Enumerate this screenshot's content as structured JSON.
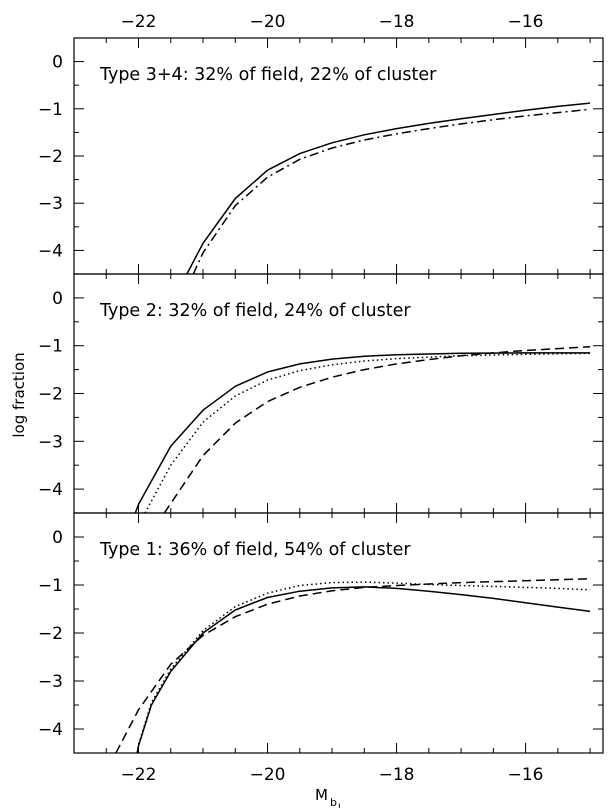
{
  "chart_data": {
    "type": "line",
    "x_axis": {
      "label_main": "M",
      "label_sub": "b",
      "label_sub2": "J",
      "range": [
        -23.0,
        -14.8
      ],
      "ticks": [
        -22,
        -20,
        -18,
        -16
      ],
      "tick_labels": [
        "−22",
        "−20",
        "−18",
        "−16"
      ],
      "minor_step": 0.5
    },
    "y_axis": {
      "label": "log fraction",
      "range": [
        -4.5,
        0.5
      ],
      "ticks": [
        0,
        -1,
        -2,
        -3,
        -4
      ],
      "tick_labels": [
        "0",
        "−1",
        "−2",
        "−3",
        "−4"
      ],
      "minor_step": 0.5
    },
    "panels": [
      {
        "annotation": "Type 3+4: 32% of field, 22% of cluster",
        "series": [
          {
            "style": "solid",
            "x": [
              -21.25,
              -21,
              -20.5,
              -20,
              -19.5,
              -19,
              -18.5,
              -18,
              -17.5,
              -17,
              -16.5,
              -16,
              -15.5,
              -15
            ],
            "y": [
              -4.5,
              -3.85,
              -2.9,
              -2.3,
              -1.95,
              -1.72,
              -1.55,
              -1.42,
              -1.31,
              -1.21,
              -1.12,
              -1.03,
              -0.95,
              -0.88
            ]
          },
          {
            "style": "dashdot",
            "x": [
              -21.15,
              -21,
              -20.5,
              -20,
              -19.5,
              -19,
              -18.5,
              -18,
              -17.5,
              -17,
              -16.5,
              -16,
              -15.5,
              -15
            ],
            "y": [
              -4.5,
              -4.05,
              -3.05,
              -2.45,
              -2.07,
              -1.83,
              -1.66,
              -1.53,
              -1.42,
              -1.32,
              -1.23,
              -1.15,
              -1.08,
              -1.01
            ]
          }
        ]
      },
      {
        "annotation": "Type 2: 32% of field, 24% of cluster",
        "series": [
          {
            "style": "solid",
            "x": [
              -22.05,
              -22,
              -21.5,
              -21,
              -20.5,
              -20,
              -19.5,
              -19,
              -18.5,
              -18,
              -17,
              -16,
              -15
            ],
            "y": [
              -4.5,
              -4.32,
              -3.1,
              -2.35,
              -1.85,
              -1.55,
              -1.38,
              -1.28,
              -1.22,
              -1.19,
              -1.16,
              -1.15,
              -1.15
            ]
          },
          {
            "style": "dotted",
            "x": [
              -21.9,
              -21.5,
              -21,
              -20.5,
              -20,
              -19.5,
              -19,
              -18.5,
              -18,
              -17,
              -16,
              -15
            ],
            "y": [
              -4.5,
              -3.5,
              -2.6,
              -2.05,
              -1.72,
              -1.52,
              -1.4,
              -1.32,
              -1.27,
              -1.21,
              -1.18,
              -1.16
            ]
          },
          {
            "style": "dashed",
            "x": [
              -21.6,
              -21.5,
              -21,
              -20.5,
              -20,
              -19.5,
              -19,
              -18.5,
              -18,
              -17.5,
              -17,
              -16.5,
              -16,
              -15.5,
              -15
            ],
            "y": [
              -4.5,
              -4.3,
              -3.3,
              -2.62,
              -2.17,
              -1.87,
              -1.66,
              -1.5,
              -1.38,
              -1.29,
              -1.21,
              -1.15,
              -1.1,
              -1.06,
              -1.02
            ]
          }
        ]
      },
      {
        "annotation": "Type 1: 36% of field, 54% of cluster",
        "series": [
          {
            "style": "solid",
            "x": [
              -22.02,
              -22,
              -21.8,
              -21.5,
              -21,
              -20.5,
              -20,
              -19.5,
              -19,
              -18.5,
              -18,
              -17.5,
              -17,
              -16.5,
              -16,
              -15.5,
              -15
            ],
            "y": [
              -4.5,
              -4.35,
              -3.5,
              -2.8,
              -2.0,
              -1.52,
              -1.26,
              -1.13,
              -1.06,
              -1.04,
              -1.07,
              -1.13,
              -1.2,
              -1.28,
              -1.37,
              -1.46,
              -1.55
            ]
          },
          {
            "style": "dotted",
            "x": [
              -22.02,
              -22,
              -21.8,
              -21.5,
              -21,
              -20.5,
              -20,
              -19.5,
              -19,
              -18.5,
              -18,
              -17.5,
              -17,
              -16.5,
              -16,
              -15.5,
              -15
            ],
            "y": [
              -4.5,
              -4.33,
              -3.45,
              -2.75,
              -1.95,
              -1.45,
              -1.17,
              -1.01,
              -0.95,
              -0.94,
              -0.96,
              -0.99,
              -1.01,
              -1.03,
              -1.05,
              -1.07,
              -1.1
            ]
          },
          {
            "style": "dashed",
            "x": [
              -22.35,
              -22,
              -21.5,
              -21,
              -20.5,
              -20,
              -19.5,
              -19,
              -18.5,
              -18,
              -17.5,
              -17,
              -16.5,
              -16,
              -15.5,
              -15
            ],
            "y": [
              -4.5,
              -3.6,
              -2.65,
              -2.05,
              -1.66,
              -1.4,
              -1.23,
              -1.12,
              -1.05,
              -1.01,
              -0.98,
              -0.95,
              -0.93,
              -0.91,
              -0.89,
              -0.87
            ]
          }
        ]
      }
    ]
  }
}
